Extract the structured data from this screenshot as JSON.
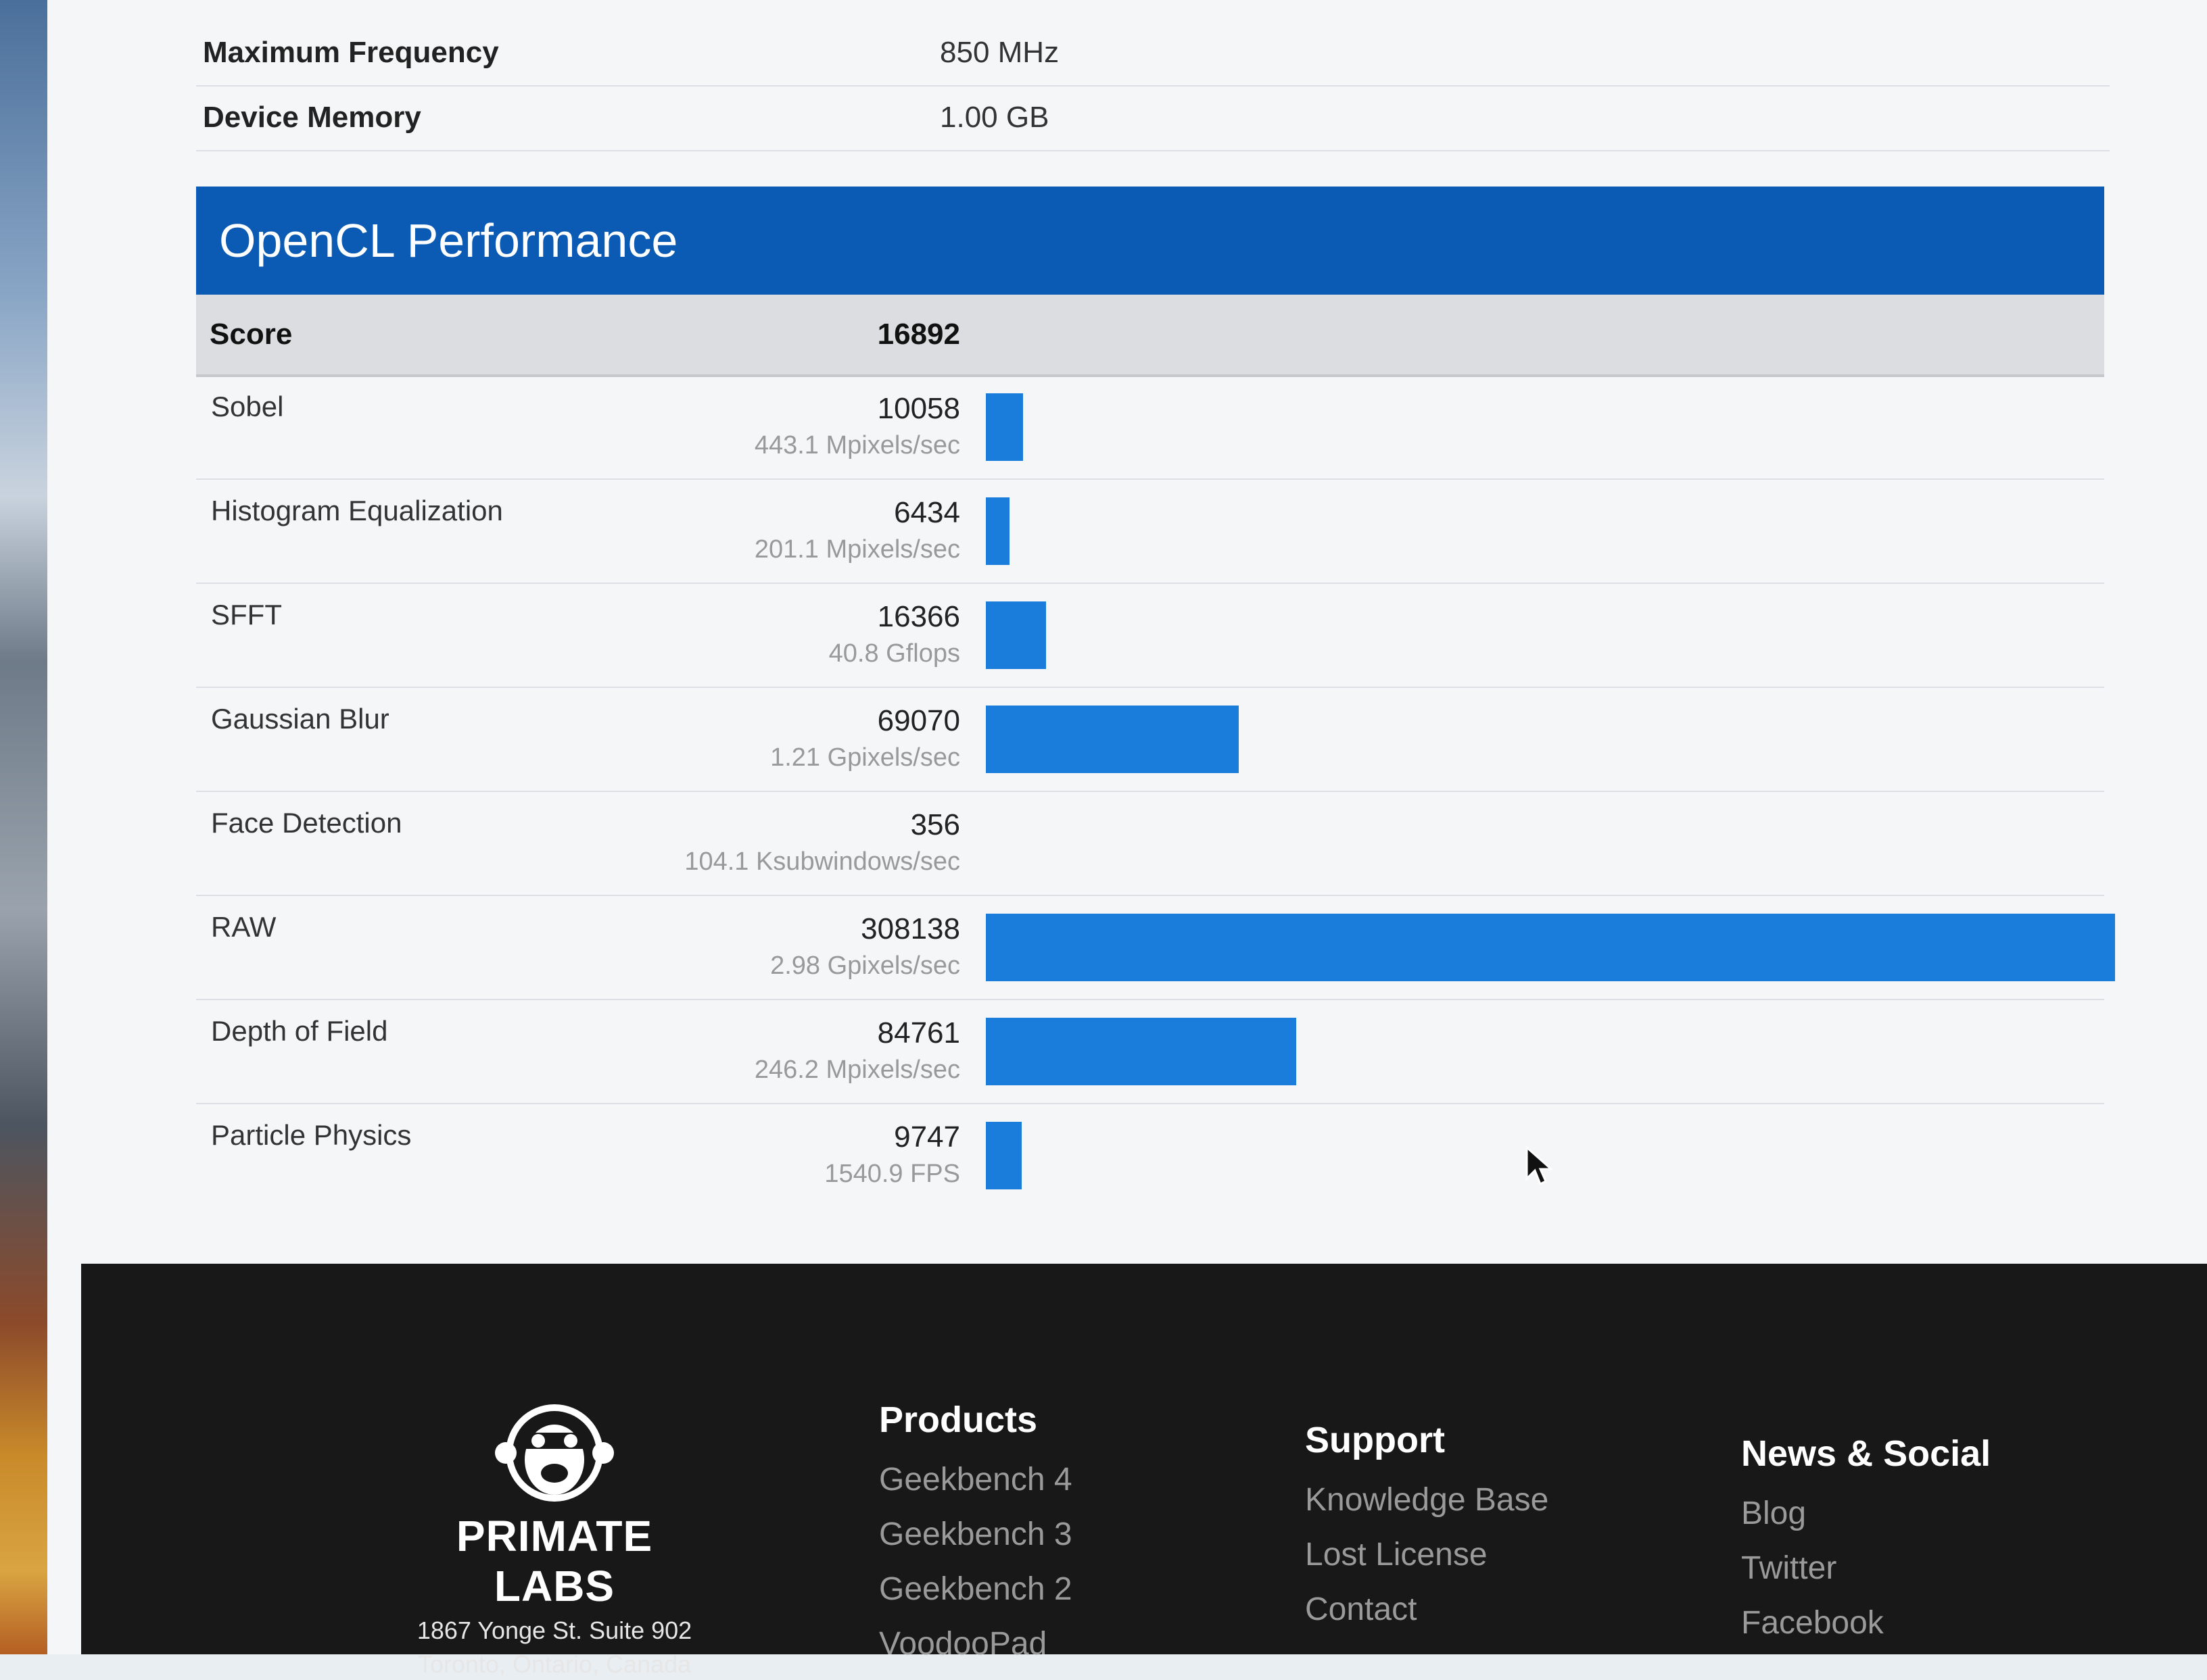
{
  "device_info": [
    {
      "label": "Maximum Frequency",
      "value": "850 MHz"
    },
    {
      "label": "Device Memory",
      "value": "1.00 GB"
    }
  ],
  "opencl": {
    "title": "OpenCL Performance",
    "score_label": "Score",
    "score": "16892",
    "max_score": 308138,
    "benchmarks": [
      {
        "name": "Sobel",
        "score": "10058",
        "rate": "443.1 Mpixels/sec",
        "value": 10058
      },
      {
        "name": "Histogram Equalization",
        "score": "6434",
        "rate": "201.1 Mpixels/sec",
        "value": 6434
      },
      {
        "name": "SFFT",
        "score": "16366",
        "rate": "40.8 Gflops",
        "value": 16366
      },
      {
        "name": "Gaussian Blur",
        "score": "69070",
        "rate": "1.21 Gpixels/sec",
        "value": 69070
      },
      {
        "name": "Face Detection",
        "score": "356",
        "rate": "104.1 Ksubwindows/sec",
        "value": 356
      },
      {
        "name": "RAW",
        "score": "308138",
        "rate": "2.98 Gpixels/sec",
        "value": 308138
      },
      {
        "name": "Depth of Field",
        "score": "84761",
        "rate": "246.2 Mpixels/sec",
        "value": 84761
      },
      {
        "name": "Particle Physics",
        "score": "9747",
        "rate": "1540.9 FPS",
        "value": 9747
      }
    ]
  },
  "footer": {
    "brand": {
      "name": "PRIMATE LABS",
      "address_line1": "1867 Yonge St. Suite 902",
      "address_line2": "Toronto, Ontario, Canada"
    },
    "products": {
      "heading": "Products",
      "links": [
        "Geekbench 4",
        "Geekbench 3",
        "Geekbench 2",
        "VoodooPad"
      ]
    },
    "support": {
      "heading": "Support",
      "links": [
        "Knowledge Base",
        "Lost License",
        "Contact"
      ]
    },
    "news": {
      "heading": "News & Social",
      "links": [
        "Blog",
        "Twitter",
        "Facebook"
      ]
    }
  },
  "colors": {
    "header_blue": "#0b5bb5",
    "bar_blue": "#1a7ddb"
  }
}
